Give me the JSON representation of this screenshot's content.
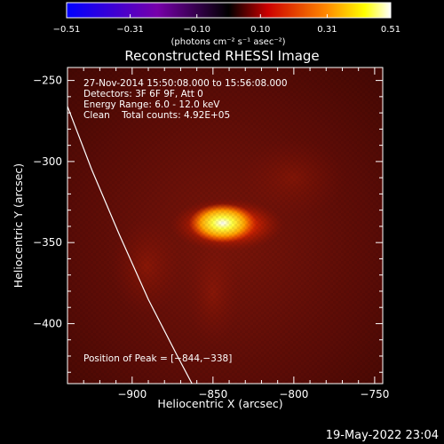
{
  "chart_data": {
    "type": "heatmap",
    "title": "Reconstructed RHESSI Image",
    "xlabel": "Heliocentric X (arcsec)",
    "ylabel": "Heliocentric Y (arcsec)",
    "xlim": [
      -940,
      -745
    ],
    "ylim": [
      -437,
      -242
    ],
    "x_ticks": [
      -900,
      -850,
      -800,
      -750
    ],
    "y_ticks": [
      -250,
      -300,
      -350,
      -400
    ],
    "x_tick_labels": [
      "−900",
      "−850",
      "−800",
      "−750"
    ],
    "y_tick_labels": [
      "−250",
      "−300",
      "−350",
      "−400"
    ],
    "colorbar": {
      "min": -0.51,
      "max": 0.51,
      "ticks": [
        -0.51,
        -0.31,
        -0.1,
        0.1,
        0.31,
        0.51
      ],
      "tick_labels": [
        "−0.51",
        "−0.31",
        "−0.10",
        "0.10",
        "0.31",
        "0.51"
      ],
      "units_label": "(photons cm⁻² s⁻¹ asec⁻²)",
      "colormap": "rhessi-blue-purple-red-yellow-white"
    },
    "annotations": [
      "27-Nov-2014 15:50:08.000 to 15:56:08.000",
      "Detectors: 3F 6F 9F, Att 0",
      "Energy Range: 6.0 - 12.0 keV",
      "Clean    Total counts: 4.92E+05"
    ],
    "peak_label": "Position of Peak = [−844,−338]",
    "peak_position": [
      -844,
      -338
    ],
    "background_level": 0.05,
    "limb_points": [
      [
        -940,
        -266
      ],
      [
        -925,
        -305
      ],
      [
        -908,
        -345
      ],
      [
        -890,
        -385
      ],
      [
        -872,
        -420
      ],
      [
        -863,
        -437
      ]
    ],
    "timestamp": "19-May-2022 23:04"
  }
}
